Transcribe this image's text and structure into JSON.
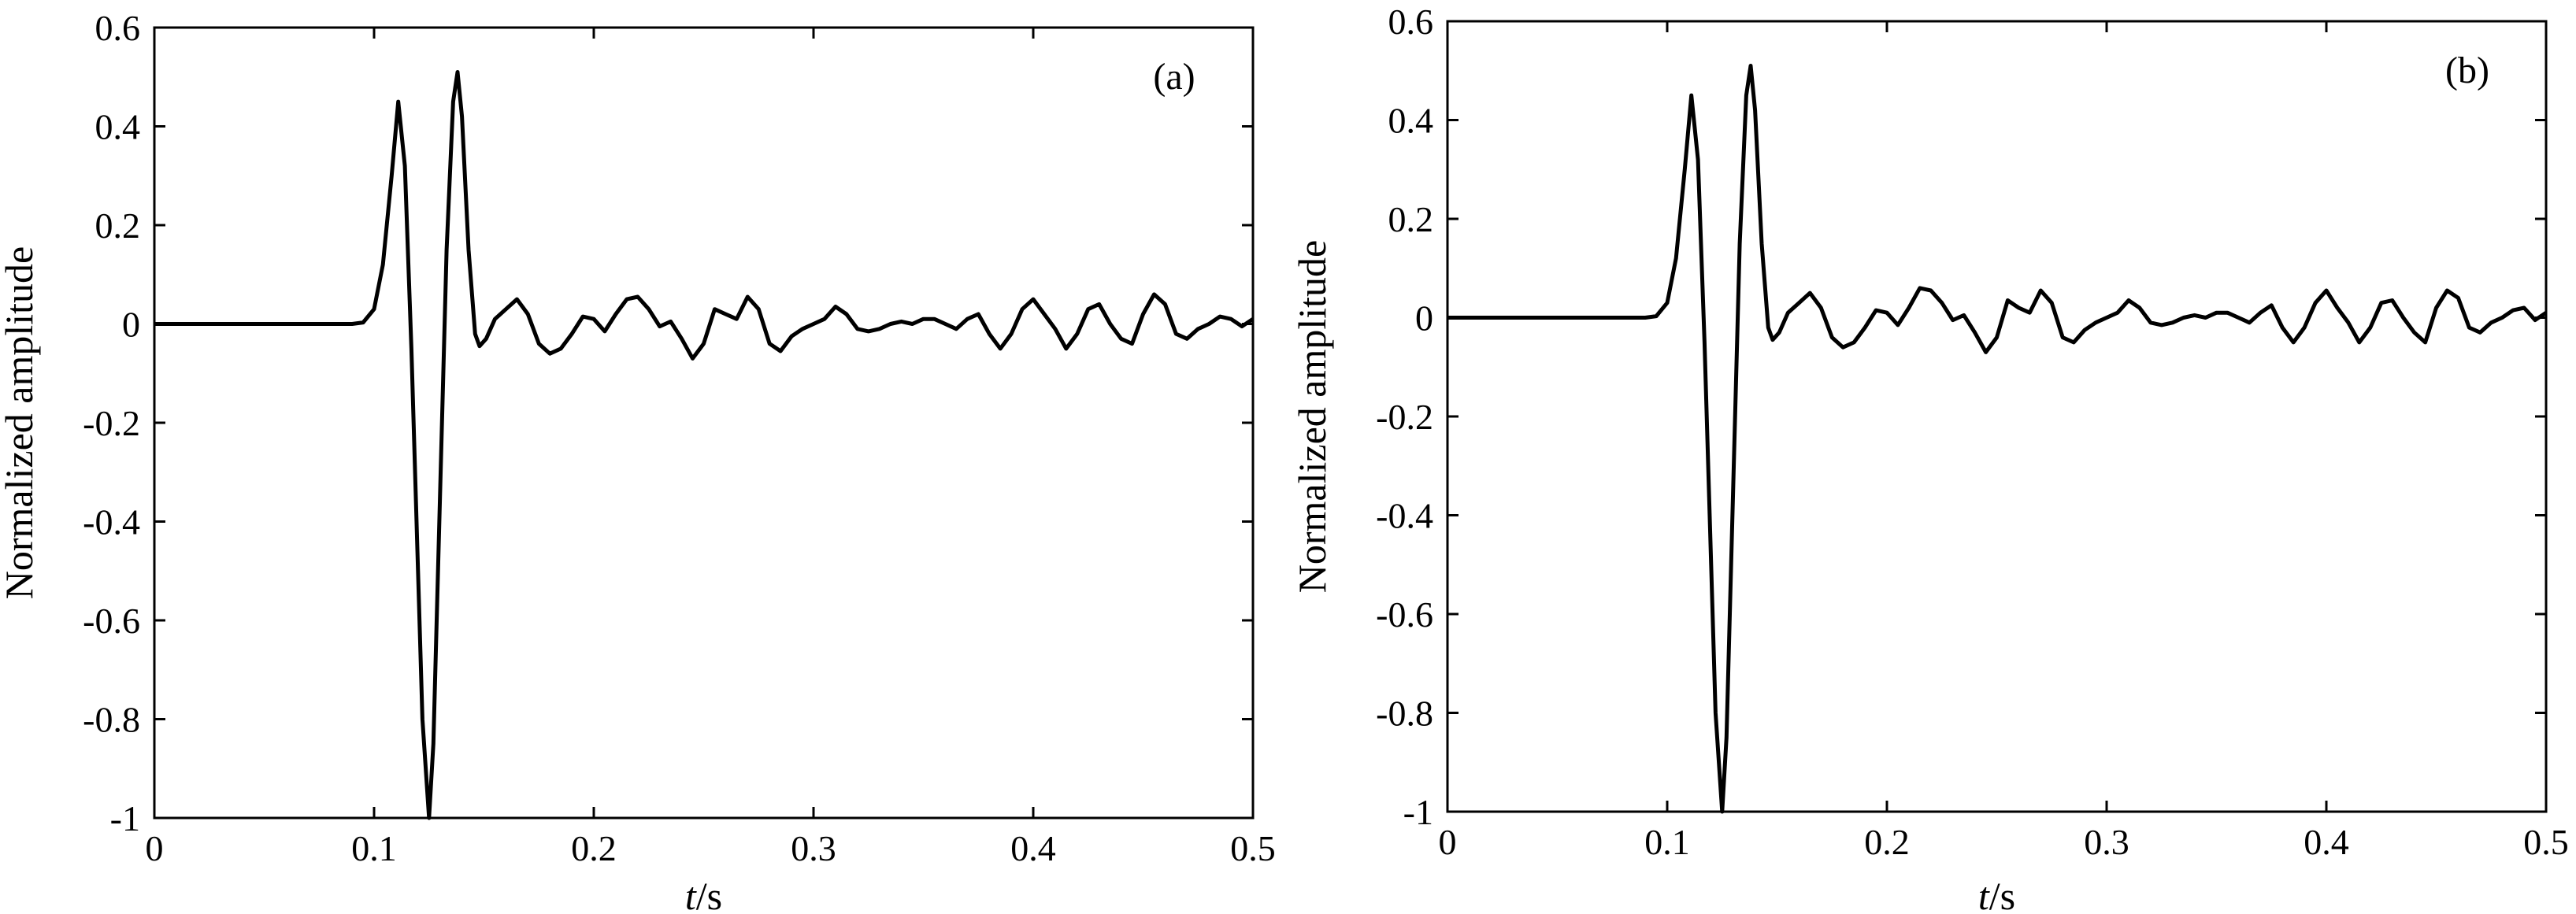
{
  "chart_data": [
    {
      "type": "line",
      "panel_label": "(a)",
      "xlabel_var": "t",
      "xlabel_unit": "/s",
      "ylabel": "Normalized amplitude",
      "xlim": [
        0,
        0.5
      ],
      "ylim": [
        -1,
        0.6
      ],
      "xticks": [
        0,
        0.1,
        0.2,
        0.3,
        0.4,
        0.5
      ],
      "xtick_labels": [
        "0",
        "0.1",
        "0.2",
        "0.3",
        "0.4",
        "0.5"
      ],
      "yticks": [
        -1,
        -0.8,
        -0.6,
        -0.4,
        -0.2,
        0,
        0.2,
        0.4,
        0.6
      ],
      "ytick_labels": [
        "-1",
        "-0.8",
        "-0.6",
        "-0.4",
        "-0.2",
        "0",
        "0.2",
        "0.4",
        "0.6"
      ],
      "grid": false,
      "series": [
        {
          "x": [
            0,
            0.09,
            0.095,
            0.1,
            0.104,
            0.108,
            0.111,
            0.114,
            0.117,
            0.12,
            0.122,
            0.125,
            0.127,
            0.13,
            0.133,
            0.136,
            0.138,
            0.14,
            0.143,
            0.146,
            0.148,
            0.151,
            0.155,
            0.16,
            0.165,
            0.17,
            0.175,
            0.18,
            0.185,
            0.19,
            0.195,
            0.2,
            0.205,
            0.21,
            0.215,
            0.22,
            0.225,
            0.23,
            0.235,
            0.24,
            0.245,
            0.25,
            0.255,
            0.26,
            0.265,
            0.27,
            0.275,
            0.28,
            0.285,
            0.29,
            0.295,
            0.3,
            0.305,
            0.31,
            0.315,
            0.32,
            0.325,
            0.33,
            0.335,
            0.34,
            0.345,
            0.35,
            0.355,
            0.36,
            0.365,
            0.37,
            0.375,
            0.38,
            0.385,
            0.39,
            0.395,
            0.4,
            0.405,
            0.41,
            0.415,
            0.42,
            0.425,
            0.43,
            0.435,
            0.44,
            0.445,
            0.45,
            0.455,
            0.46,
            0.465,
            0.47,
            0.475,
            0.48,
            0.485,
            0.49,
            0.495,
            0.5
          ],
          "y": [
            0,
            0,
            0.003,
            0.03,
            0.12,
            0.3,
            0.45,
            0.32,
            -0.05,
            -0.5,
            -0.8,
            -1.0,
            -0.85,
            -0.35,
            0.15,
            0.45,
            0.51,
            0.42,
            0.15,
            -0.02,
            -0.045,
            -0.03,
            0.01,
            0.03,
            0.05,
            0.02,
            -0.04,
            -0.06,
            -0.05,
            -0.02,
            0.015,
            0.01,
            -0.015,
            0.02,
            0.05,
            0.055,
            0.03,
            -0.005,
            0.005,
            -0.03,
            -0.07,
            -0.04,
            0.03,
            0.02,
            0.01,
            0.055,
            0.03,
            -0.04,
            -0.055,
            -0.025,
            -0.01,
            0.0,
            0.01,
            0.035,
            0.02,
            -0.01,
            -0.015,
            -0.01,
            0.0,
            0.005,
            0.0,
            0.01,
            0.01,
            0.0,
            -0.01,
            0.01,
            0.02,
            -0.02,
            -0.05,
            -0.02,
            0.03,
            0.05,
            0.02,
            -0.01,
            -0.05,
            -0.02,
            0.03,
            0.04,
            0.0,
            -0.03,
            -0.04,
            0.02,
            0.06,
            0.04,
            -0.02,
            -0.03,
            -0.01,
            0.0,
            0.015,
            0.01,
            -0.005,
            0.01
          ]
        }
      ]
    },
    {
      "type": "line",
      "panel_label": "(b)",
      "xlabel_var": "t",
      "xlabel_unit": "/s",
      "ylabel": "Normalized amplitude",
      "xlim": [
        0,
        0.5
      ],
      "ylim": [
        -1,
        0.6
      ],
      "xticks": [
        0,
        0.1,
        0.2,
        0.3,
        0.4,
        0.5
      ],
      "xtick_labels": [
        "0",
        "0.1",
        "0.2",
        "0.3",
        "0.4",
        "0.5"
      ],
      "yticks": [
        -1,
        -0.8,
        -0.6,
        -0.4,
        -0.2,
        0,
        0.2,
        0.4,
        0.6
      ],
      "ytick_labels": [
        "-1",
        "-0.8",
        "-0.6",
        "-0.4",
        "-0.2",
        "0",
        "0.2",
        "0.4",
        "0.6"
      ],
      "grid": false,
      "series": [
        {
          "x": [
            0,
            0.09,
            0.095,
            0.1,
            0.104,
            0.108,
            0.111,
            0.114,
            0.117,
            0.12,
            0.122,
            0.125,
            0.127,
            0.13,
            0.133,
            0.136,
            0.138,
            0.14,
            0.143,
            0.146,
            0.148,
            0.151,
            0.155,
            0.16,
            0.165,
            0.17,
            0.175,
            0.18,
            0.185,
            0.19,
            0.195,
            0.2,
            0.205,
            0.21,
            0.215,
            0.22,
            0.225,
            0.23,
            0.235,
            0.24,
            0.245,
            0.25,
            0.255,
            0.26,
            0.265,
            0.27,
            0.275,
            0.28,
            0.285,
            0.29,
            0.295,
            0.3,
            0.305,
            0.31,
            0.315,
            0.32,
            0.325,
            0.33,
            0.335,
            0.34,
            0.345,
            0.35,
            0.355,
            0.36,
            0.365,
            0.37,
            0.375,
            0.38,
            0.385,
            0.39,
            0.395,
            0.4,
            0.405,
            0.41,
            0.415,
            0.42,
            0.425,
            0.43,
            0.435,
            0.44,
            0.445,
            0.45,
            0.455,
            0.46,
            0.465,
            0.47,
            0.475,
            0.48,
            0.485,
            0.49,
            0.495,
            0.5
          ],
          "y": [
            0,
            0,
            0.003,
            0.03,
            0.12,
            0.3,
            0.45,
            0.32,
            -0.05,
            -0.5,
            -0.8,
            -1.0,
            -0.85,
            -0.35,
            0.15,
            0.45,
            0.51,
            0.42,
            0.15,
            -0.02,
            -0.045,
            -0.03,
            0.01,
            0.03,
            0.05,
            0.02,
            -0.04,
            -0.06,
            -0.05,
            -0.02,
            0.015,
            0.01,
            -0.015,
            0.02,
            0.06,
            0.055,
            0.03,
            -0.005,
            0.005,
            -0.03,
            -0.07,
            -0.04,
            0.035,
            0.02,
            0.01,
            0.055,
            0.03,
            -0.04,
            -0.05,
            -0.025,
            -0.01,
            0.0,
            0.01,
            0.035,
            0.02,
            -0.01,
            -0.015,
            -0.01,
            0.0,
            0.005,
            0.0,
            0.01,
            0.01,
            0.0,
            -0.01,
            0.01,
            0.025,
            -0.02,
            -0.05,
            -0.02,
            0.03,
            0.055,
            0.02,
            -0.01,
            -0.05,
            -0.02,
            0.03,
            0.035,
            0.0,
            -0.03,
            -0.05,
            0.02,
            0.055,
            0.04,
            -0.02,
            -0.03,
            -0.01,
            0.0,
            0.015,
            0.02,
            -0.005,
            0.01
          ]
        }
      ]
    }
  ]
}
